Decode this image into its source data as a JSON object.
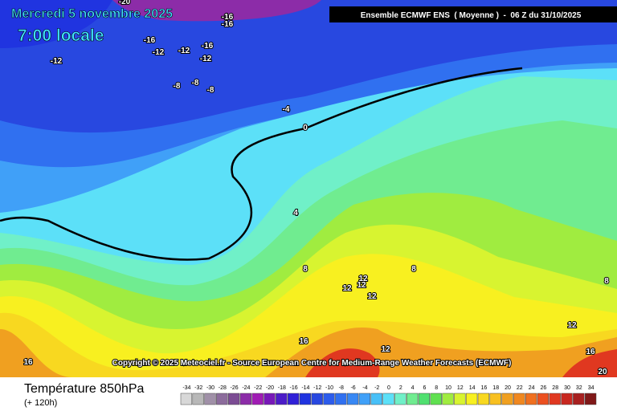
{
  "header": {
    "date": "Mercredi 5 novembre 2025",
    "time": "7:00 locale",
    "model": "Ensemble ECMWF ENS  ( Moyenne )  -  06 Z du 31/10/2025"
  },
  "copyright": "Copyright © 2025 Meteociel.fr - Source European Centre for Medium-Range Weather Forecasts (ECMWF)",
  "footer": {
    "variable": "Température 850hPa",
    "lead": "(+ 120h)"
  },
  "scale": {
    "ticks": [
      -34,
      -32,
      -30,
      -28,
      -26,
      -24,
      -22,
      -20,
      -18,
      -16,
      -14,
      -12,
      -10,
      -8,
      -6,
      -4,
      -2,
      0,
      2,
      4,
      6,
      8,
      10,
      12,
      14,
      16,
      18,
      20,
      22,
      24,
      26,
      28,
      30,
      32,
      34
    ],
    "colors": [
      "#d8d8d8",
      "#b8b8b8",
      "#a090a8",
      "#8c6c9c",
      "#7c4c94",
      "#8c2ca8",
      "#a01cb4",
      "#7818b8",
      "#4c1cc8",
      "#3020d8",
      "#2034e0",
      "#2848e0",
      "#2c5cec",
      "#3070f0",
      "#3888f4",
      "#40a0f8",
      "#48c0f8",
      "#5ce0f8",
      "#70f0c8",
      "#70ec90",
      "#50e070",
      "#60e050",
      "#a0ec40",
      "#d8f430",
      "#f8f020",
      "#f8d820",
      "#f8c020",
      "#f0a020",
      "#f08820",
      "#f07020",
      "#ec5020",
      "#e03820",
      "#c82820",
      "#a82020",
      "#801818"
    ]
  },
  "contour_labels": [
    -20,
    -16,
    -16,
    -16,
    -12,
    -12,
    -12,
    -16,
    -12,
    -8,
    -8,
    -8,
    -4,
    0,
    4,
    8,
    8,
    8,
    12,
    12,
    12,
    12,
    12,
    12,
    16,
    16,
    16,
    20
  ]
}
